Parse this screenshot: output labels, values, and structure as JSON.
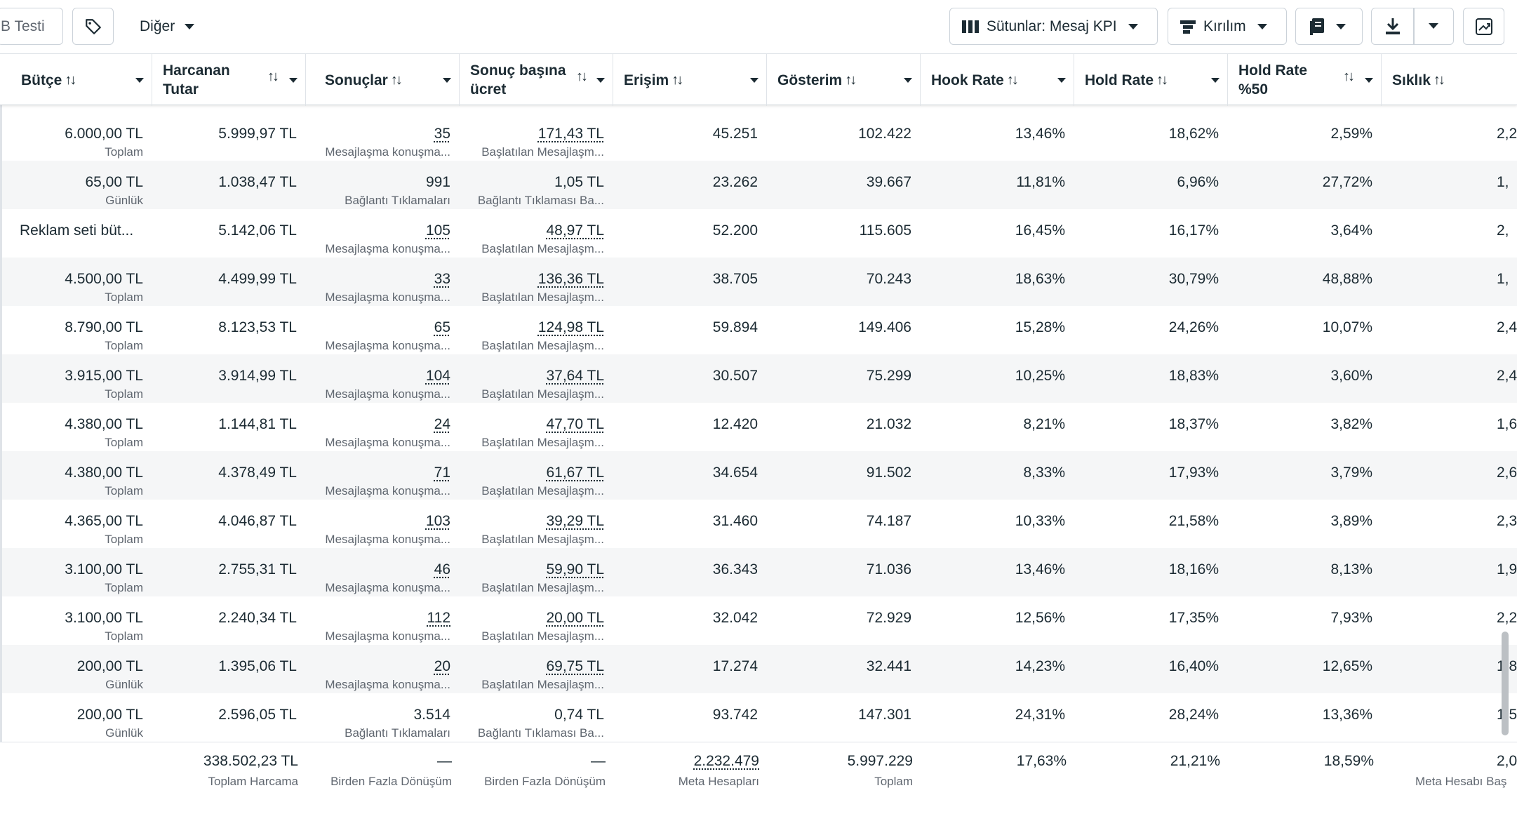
{
  "toolbar": {
    "ab_test_label": "B Testi",
    "other_label": "Diğer",
    "columns_label": "Sütunlar: Mesaj KPI",
    "breakdown_label": "Kırılım"
  },
  "columns": [
    {
      "key": "budget",
      "label": "Bütçe"
    },
    {
      "key": "spent",
      "label": "Harcanan Tutar"
    },
    {
      "key": "results",
      "label": "Sonuçlar"
    },
    {
      "key": "cost_per_result",
      "label": "Sonuç başına ücret"
    },
    {
      "key": "reach",
      "label": "Erişim"
    },
    {
      "key": "impressions",
      "label": "Gösterim"
    },
    {
      "key": "hook_rate",
      "label": "Hook Rate"
    },
    {
      "key": "hold_rate",
      "label": "Hold Rate"
    },
    {
      "key": "hold_rate_50",
      "label": "Hold Rate %50"
    },
    {
      "key": "frequency",
      "label": "Sıklık"
    }
  ],
  "rows": [
    {
      "budget": "6.000,00 TL",
      "budget_sub": "Toplam",
      "spent": "5.999,97 TL",
      "results": "35",
      "results_sub": "Mesajlaşma konuşma...",
      "cpr": "171,43 TL",
      "cpr_sub": "Başlatılan Mesajlaşm...",
      "reach": "45.251",
      "impressions": "102.422",
      "hook": "13,46%",
      "hold": "18,62%",
      "hold50": "2,59%",
      "freq": "2,2"
    },
    {
      "budget": "65,00 TL",
      "budget_sub": "Günlük",
      "spent": "1.038,47 TL",
      "results": "991",
      "results_sub": "Bağlantı Tıklamaları",
      "cpr": "1,05 TL",
      "cpr_sub": "Bağlantı Tıklaması Ba...",
      "reach": "23.262",
      "impressions": "39.667",
      "hook": "11,81%",
      "hold": "6,96%",
      "hold50": "27,72%",
      "freq": "1,"
    },
    {
      "budget": "Reklam seti büt...",
      "budget_sub": "",
      "spent": "5.142,06 TL",
      "results": "105",
      "results_sub": "Mesajlaşma konuşma...",
      "cpr": "48,97 TL",
      "cpr_sub": "Başlatılan Mesajlaşm...",
      "reach": "52.200",
      "impressions": "115.605",
      "hook": "16,45%",
      "hold": "16,17%",
      "hold50": "3,64%",
      "freq": "2,"
    },
    {
      "budget": "4.500,00 TL",
      "budget_sub": "Toplam",
      "spent": "4.499,99 TL",
      "results": "33",
      "results_sub": "Mesajlaşma konuşma...",
      "cpr": "136,36 TL",
      "cpr_sub": "Başlatılan Mesajlaşm...",
      "reach": "38.705",
      "impressions": "70.243",
      "hook": "18,63%",
      "hold": "30,79%",
      "hold50": "48,88%",
      "freq": "1,"
    },
    {
      "budget": "8.790,00 TL",
      "budget_sub": "Toplam",
      "spent": "8.123,53 TL",
      "results": "65",
      "results_sub": "Mesajlaşma konuşma...",
      "cpr": "124,98 TL",
      "cpr_sub": "Başlatılan Mesajlaşm...",
      "reach": "59.894",
      "impressions": "149.406",
      "hook": "15,28%",
      "hold": "24,26%",
      "hold50": "10,07%",
      "freq": "2,4"
    },
    {
      "budget": "3.915,00 TL",
      "budget_sub": "Toplam",
      "spent": "3.914,99 TL",
      "results": "104",
      "results_sub": "Mesajlaşma konuşma...",
      "cpr": "37,64 TL",
      "cpr_sub": "Başlatılan Mesajlaşm...",
      "reach": "30.507",
      "impressions": "75.299",
      "hook": "10,25%",
      "hold": "18,83%",
      "hold50": "3,60%",
      "freq": "2,4"
    },
    {
      "budget": "4.380,00 TL",
      "budget_sub": "Toplam",
      "spent": "1.144,81 TL",
      "results": "24",
      "results_sub": "Mesajlaşma konuşma...",
      "cpr": "47,70 TL",
      "cpr_sub": "Başlatılan Mesajlaşm...",
      "reach": "12.420",
      "impressions": "21.032",
      "hook": "8,21%",
      "hold": "18,37%",
      "hold50": "3,82%",
      "freq": "1,6"
    },
    {
      "budget": "4.380,00 TL",
      "budget_sub": "Toplam",
      "spent": "4.378,49 TL",
      "results": "71",
      "results_sub": "Mesajlaşma konuşma...",
      "cpr": "61,67 TL",
      "cpr_sub": "Başlatılan Mesajlaşm...",
      "reach": "34.654",
      "impressions": "91.502",
      "hook": "8,33%",
      "hold": "17,93%",
      "hold50": "3,79%",
      "freq": "2,6"
    },
    {
      "budget": "4.365,00 TL",
      "budget_sub": "Toplam",
      "spent": "4.046,87 TL",
      "results": "103",
      "results_sub": "Mesajlaşma konuşma...",
      "cpr": "39,29 TL",
      "cpr_sub": "Başlatılan Mesajlaşm...",
      "reach": "31.460",
      "impressions": "74.187",
      "hook": "10,33%",
      "hold": "21,58%",
      "hold50": "3,89%",
      "freq": "2,3"
    },
    {
      "budget": "3.100,00 TL",
      "budget_sub": "Toplam",
      "spent": "2.755,31 TL",
      "results": "46",
      "results_sub": "Mesajlaşma konuşma...",
      "cpr": "59,90 TL",
      "cpr_sub": "Başlatılan Mesajlaşm...",
      "reach": "36.343",
      "impressions": "71.036",
      "hook": "13,46%",
      "hold": "18,16%",
      "hold50": "8,13%",
      "freq": "1,9"
    },
    {
      "budget": "3.100,00 TL",
      "budget_sub": "Toplam",
      "spent": "2.240,34 TL",
      "results": "112",
      "results_sub": "Mesajlaşma konuşma...",
      "cpr": "20,00 TL",
      "cpr_sub": "Başlatılan Mesajlaşm...",
      "reach": "32.042",
      "impressions": "72.929",
      "hook": "12,56%",
      "hold": "17,35%",
      "hold50": "7,93%",
      "freq": "2,2"
    },
    {
      "budget": "200,00 TL",
      "budget_sub": "Günlük",
      "spent": "1.395,06 TL",
      "results": "20",
      "results_sub": "Mesajlaşma konuşma...",
      "cpr": "69,75 TL",
      "cpr_sub": "Başlatılan Mesajlaşm...",
      "reach": "17.274",
      "impressions": "32.441",
      "hook": "14,23%",
      "hold": "16,40%",
      "hold50": "12,65%",
      "freq": "1,8"
    },
    {
      "budget": "200,00 TL",
      "budget_sub": "Günlük",
      "spent": "2.596,05 TL",
      "results": "3.514",
      "results_sub": "Bağlantı Tıklamaları",
      "cpr": "0,74 TL",
      "cpr_sub": "Bağlantı Tıklaması Ba...",
      "reach": "93.742",
      "impressions": "147.301",
      "hook": "24,31%",
      "hold": "28,24%",
      "hold50": "13,36%",
      "freq": "1,5"
    }
  ],
  "footer": {
    "spent": "338.502,23 TL",
    "spent_sub": "Toplam Harcama",
    "results": "—",
    "results_sub": "Birden Fazla Dönüşüm",
    "cpr": "—",
    "cpr_sub": "Birden Fazla Dönüşüm",
    "reach": "2.232.479",
    "reach_sub": "Meta Hesapları",
    "impressions": "5.997.229",
    "impressions_sub": "Toplam",
    "hook": "17,63%",
    "hold": "21,21%",
    "hold50": "18,59%",
    "freq": "2,0",
    "freq_sub": "Meta Hesabı Baş"
  }
}
